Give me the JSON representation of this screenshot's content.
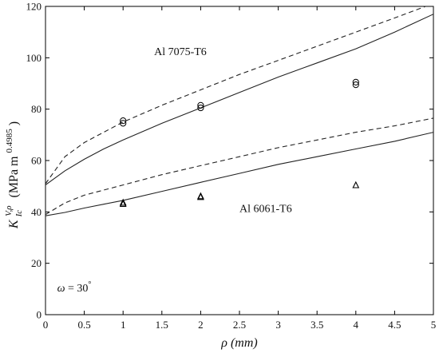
{
  "chart_data": {
    "type": "line",
    "title": "",
    "xlabel": "ρ (mm)",
    "ylabel": {
      "base": "K",
      "sub": "Ic",
      "sup": "V,ρ",
      "units_prefix": "(MPa m",
      "units_exp": "0.4985",
      "units_suffix": ")"
    },
    "xlim": [
      0,
      5
    ],
    "ylim": [
      0,
      120
    ],
    "xticks": [
      0,
      0.5,
      1,
      1.5,
      2,
      2.5,
      3,
      3.5,
      4,
      4.5,
      5
    ],
    "xtick_labels": [
      "0",
      "0.5",
      "1",
      "1.5",
      "2",
      "2.5",
      "3",
      "3.5",
      "4",
      "4.5",
      "5"
    ],
    "yticks": [
      0,
      20,
      40,
      60,
      80,
      100,
      120
    ],
    "ytick_labels": [
      "0",
      "20",
      "40",
      "60",
      "80",
      "100",
      "120"
    ],
    "grid": false,
    "legend": "none",
    "annotations": [
      {
        "text": "Al 7075-T6",
        "x": 1.4,
        "y": 101
      },
      {
        "text": "Al 6061-T6",
        "x": 2.5,
        "y": 40
      },
      {
        "text": "ω = 30°",
        "x": 0.15,
        "y": 9
      }
    ],
    "series": [
      {
        "style": "solid",
        "material": "7075",
        "x": [
          0,
          0.25,
          0.5,
          0.75,
          1,
          1.5,
          2,
          2.5,
          3,
          3.5,
          4,
          4.5,
          5
        ],
        "y": [
          50.5,
          56,
          60.5,
          64.5,
          68,
          74.5,
          80.5,
          86.5,
          92.5,
          98,
          103.5,
          110,
          117
        ]
      },
      {
        "style": "dashed",
        "material": "7075",
        "x": [
          0,
          0.25,
          0.5,
          0.75,
          1,
          1.5,
          2,
          2.5,
          3,
          3.5,
          4,
          4.5,
          4.9
        ],
        "y": [
          51,
          61.5,
          67,
          71,
          75,
          81.5,
          87.5,
          93.5,
          99,
          104.5,
          110,
          115.5,
          120
        ]
      },
      {
        "style": "solid",
        "material": "6061",
        "x": [
          0,
          0.25,
          0.5,
          0.75,
          1,
          1.5,
          2,
          2.5,
          3,
          3.5,
          4,
          4.5,
          5
        ],
        "y": [
          38.5,
          39.8,
          41.5,
          43,
          44.5,
          48,
          51.5,
          55,
          58.5,
          61.5,
          64.5,
          67.5,
          71
        ]
      },
      {
        "style": "dashed",
        "material": "6061",
        "x": [
          0,
          0.25,
          0.5,
          0.75,
          1,
          1.5,
          2,
          2.5,
          3,
          3.5,
          4,
          4.5,
          5
        ],
        "y": [
          39,
          43.5,
          46.5,
          48.5,
          50.5,
          54.5,
          58,
          61.5,
          65,
          68,
          71,
          73.5,
          76.5
        ]
      }
    ],
    "points": [
      {
        "marker": "circle",
        "material": "7075",
        "x": 1,
        "y": 75.5
      },
      {
        "marker": "circle",
        "material": "7075",
        "x": 1,
        "y": 74.5
      },
      {
        "marker": "circle",
        "material": "7075",
        "x": 2,
        "y": 81.5
      },
      {
        "marker": "circle",
        "material": "7075",
        "x": 2,
        "y": 80.5
      },
      {
        "marker": "circle",
        "material": "7075",
        "x": 4,
        "y": 90.5
      },
      {
        "marker": "circle",
        "material": "7075",
        "x": 4,
        "y": 89.5
      },
      {
        "marker": "triangle",
        "material": "6061",
        "x": 1,
        "y": 43.5
      },
      {
        "marker": "triangle",
        "material": "6061",
        "x": 1,
        "y": 43
      },
      {
        "marker": "triangle",
        "material": "6061",
        "x": 2,
        "y": 46
      },
      {
        "marker": "triangle",
        "material": "6061",
        "x": 2,
        "y": 45.7
      },
      {
        "marker": "triangle",
        "material": "6061",
        "x": 4,
        "y": 50.3
      }
    ]
  },
  "colors": {
    "axes": "#000000",
    "series": "#222222",
    "background": "#ffffff"
  }
}
